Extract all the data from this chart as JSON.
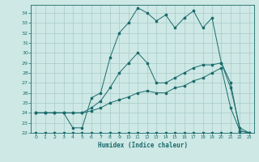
{
  "xlabel": "Humidex (Indice chaleur)",
  "ylabel": "",
  "bg_color": "#cde8e5",
  "line_color": "#1a6b6b",
  "grid_color": "#a8cbc8",
  "xlim": [
    -0.5,
    23.5
  ],
  "ylim": [
    22,
    34.8
  ],
  "xticks": [
    0,
    1,
    2,
    3,
    4,
    5,
    6,
    7,
    8,
    9,
    10,
    11,
    12,
    13,
    14,
    15,
    16,
    17,
    18,
    19,
    20,
    21,
    22,
    23
  ],
  "yticks": [
    22,
    23,
    24,
    25,
    26,
    27,
    28,
    29,
    30,
    31,
    32,
    33,
    34
  ],
  "curve1_x": [
    0,
    1,
    2,
    3,
    4,
    5,
    6,
    7,
    8,
    9,
    10,
    11,
    12,
    13,
    14,
    15,
    16,
    17,
    18,
    19,
    20,
    21,
    22,
    23
  ],
  "curve1_y": [
    24,
    24,
    24,
    24,
    22.5,
    22.5,
    25.5,
    26,
    29.5,
    32,
    33,
    34.5,
    34,
    33.2,
    33.8,
    32.5,
    33.5,
    34.2,
    32.5,
    33.5,
    29,
    27,
    22.2,
    22
  ],
  "curve2_x": [
    0,
    1,
    2,
    3,
    4,
    5,
    6,
    7,
    8,
    9,
    10,
    11,
    12,
    13,
    14,
    15,
    16,
    17,
    18,
    19,
    20,
    21,
    22,
    23
  ],
  "curve2_y": [
    24,
    24,
    24,
    24,
    24,
    24,
    24.5,
    25.2,
    26.5,
    28,
    29,
    30,
    29,
    27,
    27,
    27.5,
    28,
    28.5,
    28.8,
    28.8,
    29,
    26.5,
    22.5,
    22
  ],
  "curve3_x": [
    0,
    1,
    2,
    3,
    4,
    5,
    6,
    7,
    8,
    9,
    10,
    11,
    12,
    13,
    14,
    15,
    16,
    17,
    18,
    19,
    20,
    21,
    22,
    23
  ],
  "curve3_y": [
    22,
    22,
    22,
    22,
    22,
    22,
    22,
    22,
    22,
    22,
    22,
    22,
    22,
    22,
    22,
    22,
    22,
    22,
    22,
    22,
    22,
    22,
    22,
    22
  ],
  "curve4_x": [
    0,
    1,
    2,
    3,
    4,
    5,
    6,
    7,
    8,
    9,
    10,
    11,
    12,
    13,
    14,
    15,
    16,
    17,
    18,
    19,
    20,
    21,
    22,
    23
  ],
  "curve4_y": [
    24,
    24,
    24,
    24,
    24,
    24,
    24.2,
    24.5,
    25,
    25.3,
    25.6,
    26,
    26.2,
    26,
    26,
    26.5,
    26.7,
    27.2,
    27.5,
    28,
    28.5,
    24.5,
    22.2,
    22
  ]
}
